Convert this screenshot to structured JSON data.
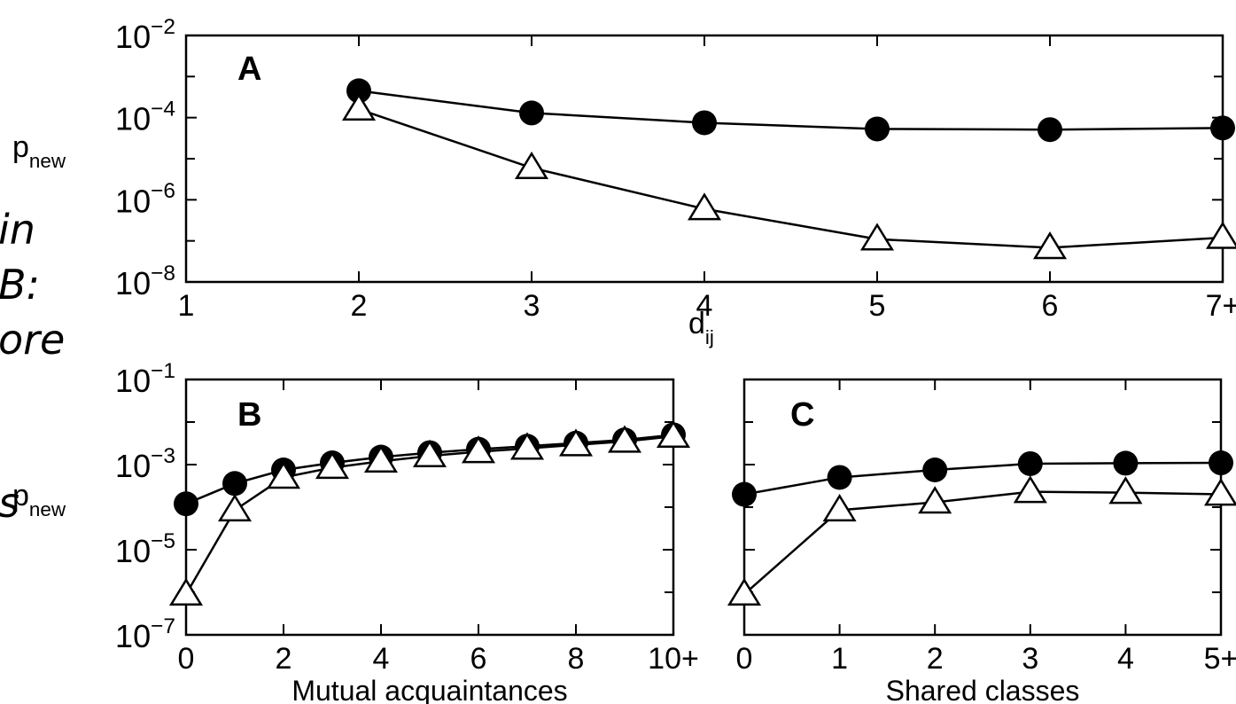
{
  "cropped_text": [
    "in",
    "B:",
    "ore",
    "s"
  ],
  "chart_data": [
    {
      "panel": "A",
      "type": "line",
      "y_scale": "log",
      "ylim": [
        1e-08,
        0.01
      ],
      "yticks": [
        1e-08,
        1e-06,
        0.0001,
        0.01
      ],
      "ytick_labels": [
        {
          "base": "10",
          "exp": "−8"
        },
        {
          "base": "10",
          "exp": "−6"
        },
        {
          "base": "10",
          "exp": "−4"
        },
        {
          "base": "10",
          "exp": "−2"
        }
      ],
      "x_categories": [
        "1",
        "2",
        "3",
        "4",
        "5",
        "6",
        "7+"
      ],
      "xlabel": {
        "base": "d",
        "sub": "ij"
      },
      "ylabel": {
        "base": "p",
        "sub": "new"
      },
      "series": [
        {
          "marker": "circle",
          "x": [
            1,
            2,
            3,
            4,
            5,
            6
          ],
          "y": [
            0.00045,
            0.00013,
            7.5e-05,
            5.3e-05,
            5.1e-05,
            5.6e-05
          ]
        },
        {
          "marker": "triangle",
          "x": [
            1,
            2,
            3,
            4,
            5,
            6
          ],
          "y": [
            0.00016,
            6e-06,
            6e-07,
            1.1e-07,
            6.8e-08,
            1.2e-07
          ]
        }
      ]
    },
    {
      "panel": "B",
      "type": "line",
      "y_scale": "log",
      "ylim": [
        1e-07,
        0.1
      ],
      "yticks": [
        1e-07,
        1e-05,
        0.001,
        0.1
      ],
      "ytick_labels": [
        {
          "base": "10",
          "exp": "−7"
        },
        {
          "base": "10",
          "exp": "−5"
        },
        {
          "base": "10",
          "exp": "−3"
        },
        {
          "base": "10",
          "exp": "−1"
        }
      ],
      "x_tick_labels": [
        "0",
        "2",
        "4",
        "6",
        "8",
        "10+"
      ],
      "x_tick_positions": [
        0,
        2,
        4,
        6,
        8,
        10
      ],
      "xlim": [
        0,
        10
      ],
      "xlabel": "Mutual acquaintances",
      "ylabel": {
        "base": "p",
        "sub": "new"
      },
      "series": [
        {
          "marker": "circle",
          "x": [
            0,
            1,
            2,
            3,
            4,
            5,
            6,
            7,
            8,
            9,
            10
          ],
          "y": [
            0.00012,
            0.00036,
            0.00075,
            0.0011,
            0.0015,
            0.0019,
            0.0023,
            0.0027,
            0.0032,
            0.0038,
            0.005
          ]
        },
        {
          "marker": "triangle",
          "x": [
            0,
            1,
            2,
            3,
            4,
            5,
            6,
            7,
            8,
            9,
            10
          ],
          "y": [
            9e-07,
            8.5e-05,
            0.0005,
            0.00085,
            0.0012,
            0.0016,
            0.002,
            0.0024,
            0.0029,
            0.0035,
            0.0046
          ]
        }
      ]
    },
    {
      "panel": "C",
      "type": "line",
      "y_scale": "log",
      "ylim": [
        1e-07,
        0.1
      ],
      "yticks": [
        1e-07,
        1e-05,
        0.001,
        0.1
      ],
      "x_tick_labels": [
        "0",
        "1",
        "2",
        "3",
        "4",
        "5+"
      ],
      "x_tick_positions": [
        0,
        1,
        2,
        3,
        4,
        5
      ],
      "xlim": [
        0,
        5
      ],
      "xlabel": "Shared classes",
      "series": [
        {
          "marker": "circle",
          "x": [
            0,
            1,
            2,
            3,
            4,
            5
          ],
          "y": [
            0.0002,
            0.0005,
            0.00075,
            0.00105,
            0.00108,
            0.0011
          ]
        },
        {
          "marker": "triangle",
          "x": [
            0,
            1,
            2,
            3,
            4,
            5
          ],
          "y": [
            9e-07,
            8.5e-05,
            0.00013,
            0.00023,
            0.00022,
            0.0002
          ]
        }
      ]
    }
  ]
}
